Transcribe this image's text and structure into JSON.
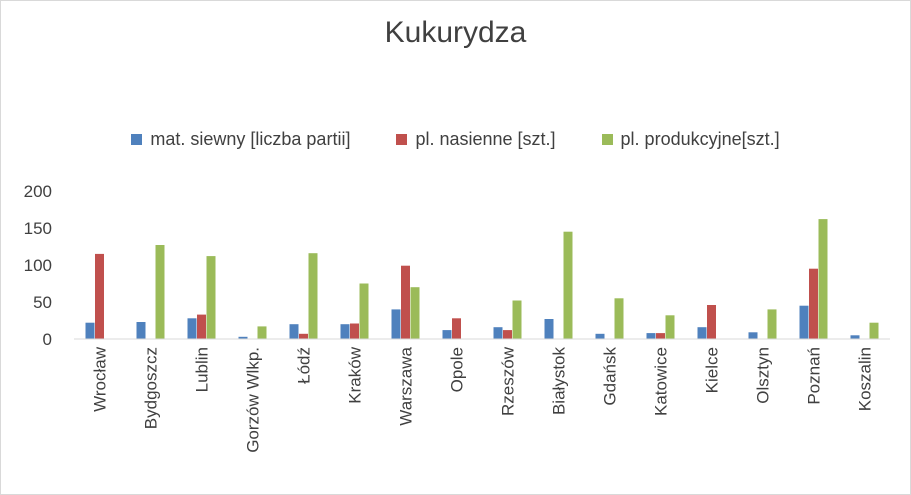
{
  "chart_data": {
    "type": "bar",
    "title": "Kukurydza",
    "categories": [
      "Wrocław",
      "Bydgoszcz",
      "Lublin",
      "Gorzów Wlkp.",
      "Łódź",
      "Kraków",
      "Warszawa",
      "Opole",
      "Rzeszów",
      "Białystok",
      "Gdańsk",
      "Katowice",
      "Kielce",
      "Olsztyn",
      "Poznań",
      "Koszalin"
    ],
    "series": [
      {
        "name": "mat. siewny [liczba partii]",
        "color": "#4f81bd",
        "values": [
          22,
          23,
          28,
          3,
          20,
          20,
          40,
          12,
          16,
          27,
          7,
          8,
          16,
          9,
          45,
          5
        ]
      },
      {
        "name": "pl. nasienne [szt.]",
        "color": "#c0504d",
        "values": [
          115,
          0,
          33,
          0,
          7,
          21,
          99,
          28,
          12,
          0,
          0,
          8,
          46,
          0,
          95,
          0
        ]
      },
      {
        "name": "pl. produkcyjne[szt.]",
        "color": "#9bbb59",
        "values": [
          0,
          127,
          112,
          17,
          116,
          75,
          70,
          0,
          52,
          145,
          55,
          32,
          0,
          40,
          162,
          22
        ]
      }
    ],
    "yticks": [
      0,
      50,
      100,
      150,
      200
    ],
    "ylim": [
      0,
      200
    ],
    "grid": false,
    "legend_position": "top"
  }
}
